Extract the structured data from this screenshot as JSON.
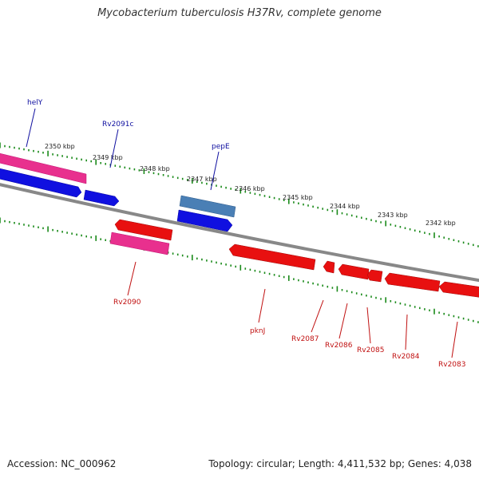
{
  "title": "Mycobacterium tuberculosis H37Rv, complete genome",
  "footer": {
    "accession": "Accession: NC_000962",
    "summary": "Topology: circular; Length: 4,411,532 bp; Genes: 4,038"
  },
  "colors": {
    "forward_gene": "#1010e0",
    "reverse_gene": "#e81010",
    "rna_gene": "#e8308e",
    "pseudo_gene": "#4a7fb5",
    "backbone": "#888888",
    "tick": "#1a8a1a",
    "forward_label": "#1010a0",
    "reverse_label": "#c01010"
  },
  "kbp_ticks": [
    "2350 kbp",
    "2349 kbp",
    "2348 kbp",
    "2347 kbp",
    "2346 kbp",
    "2345 kbp",
    "2344 kbp",
    "2343 kbp",
    "2342 kbp"
  ],
  "forward_labels": [
    "helY",
    "Rv2091c",
    "pepE"
  ],
  "reverse_labels": [
    "Rv2090",
    "pknJ",
    "Rv2087",
    "Rv2086",
    "Rv2085",
    "Rv2084",
    "Rv2083"
  ]
}
